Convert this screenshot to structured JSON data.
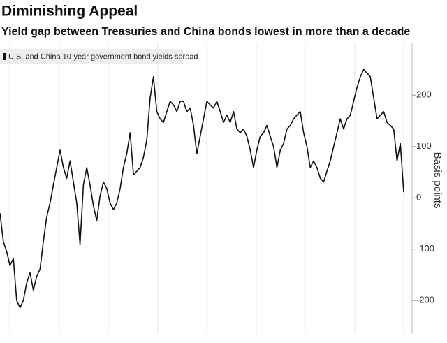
{
  "chart_data": {
    "type": "line",
    "title": "Diminishing Appeal",
    "subtitle": "Yield gap between Treasuries and China bonds lowest in more than a decade",
    "y_axis_label": "Basis points",
    "ylim": [
      -265,
      297
    ],
    "yticks": [
      -200,
      -100,
      0,
      100,
      200
    ],
    "series": [
      {
        "name": "U.S. and China 10-year government bond yields spread",
        "color": "#111111",
        "values": [
          -30,
          -85,
          -105,
          -132,
          -118,
          -200,
          -214,
          -200,
          -166,
          -146,
          -180,
          -153,
          -139,
          -85,
          -37,
          -10,
          25,
          59,
          93,
          59,
          38,
          72,
          31,
          -10,
          -91,
          25,
          59,
          25,
          -16,
          -44,
          4,
          31,
          18,
          -10,
          -23,
          -10,
          18,
          59,
          86,
          127,
          45,
          52,
          59,
          79,
          113,
          195,
          236,
          168,
          154,
          147,
          168,
          188,
          181,
          168,
          188,
          188,
          168,
          175,
          141,
          86,
          120,
          154,
          188,
          181,
          175,
          188,
          168,
          147,
          161,
          147,
          168,
          134,
          127,
          134,
          120,
          93,
          59,
          93,
          120,
          127,
          141,
          120,
          100,
          59,
          93,
          106,
          134,
          141,
          154,
          161,
          168,
          127,
          100,
          59,
          72,
          59,
          38,
          31,
          52,
          72,
          100,
          127,
          154,
          134,
          154,
          161,
          188,
          215,
          236,
          250,
          243,
          236,
          195,
          154,
          161,
          168,
          147,
          141,
          134,
          72,
          106,
          11
        ]
      }
    ]
  }
}
